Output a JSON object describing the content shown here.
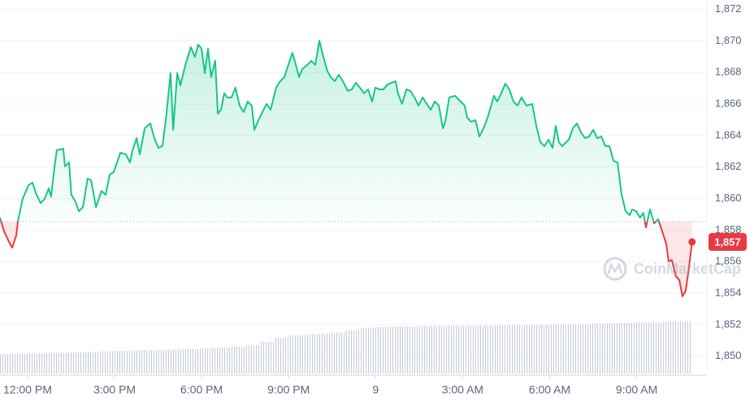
{
  "chart_data": {
    "type": "area",
    "x": [
      11.05,
      11.19,
      11.39,
      11.47,
      11.61,
      11.67,
      11.83,
      12.03,
      12.17,
      12.31,
      12.45,
      12.59,
      12.73,
      12.81,
      12.95,
      13.01,
      13.23,
      13.29,
      13.43,
      13.51,
      13.65,
      13.77,
      13.91,
      14.07,
      14.19,
      14.36,
      14.55,
      14.69,
      14.83,
      14.97,
      15.2,
      15.39,
      15.53,
      15.62,
      15.76,
      15.87,
      16.04,
      16.23,
      16.37,
      16.51,
      16.65,
      16.79,
      16.93,
      17.02,
      17.16,
      17.27,
      17.44,
      17.63,
      17.77,
      17.88,
      18.0,
      18.11,
      18.22,
      18.33,
      18.47,
      18.56,
      18.67,
      18.78,
      18.89,
      19.03,
      19.17,
      19.31,
      19.45,
      19.59,
      19.73,
      19.82,
      19.96,
      20.07,
      20.24,
      20.38,
      20.57,
      20.71,
      20.85,
      20.99,
      21.13,
      21.25,
      21.36,
      21.47,
      21.64,
      21.78,
      21.92,
      22.06,
      22.2,
      22.34,
      22.45,
      22.59,
      22.73,
      22.87,
      23.04,
      23.18,
      23.32,
      23.46,
      23.6,
      23.74,
      23.88,
      23.99,
      24.13,
      24.27,
      24.41,
      24.55,
      24.69,
      24.77,
      24.91,
      25.06,
      25.2,
      25.34,
      25.48,
      25.62,
      25.76,
      25.9,
      26.04,
      26.18,
      26.32,
      26.4,
      26.54,
      26.74,
      26.93,
      27.07,
      27.16,
      27.3,
      27.44,
      27.58,
      27.72,
      27.86,
      28.0,
      28.08,
      28.19,
      28.33,
      28.47,
      28.61,
      28.75,
      28.89,
      29.03,
      29.2,
      29.4,
      29.54,
      29.68,
      29.82,
      29.96,
      30.1,
      30.21,
      30.32,
      30.43,
      30.57,
      30.66,
      30.8,
      30.94,
      31.08,
      31.22,
      31.36,
      31.5,
      31.64,
      31.78,
      31.92,
      32.06,
      32.2,
      32.34,
      32.48,
      32.62,
      32.76,
      32.84,
      32.98,
      33.12,
      33.23,
      33.32,
      33.46,
      33.6,
      33.74,
      33.88,
      34.02,
      34.1,
      34.21,
      34.35,
      34.47,
      34.58,
      34.69,
      34.8,
      34.91
    ],
    "values": [
      1858.79,
      1857.92,
      1857.14,
      1856.89,
      1857.66,
      1858.59,
      1859.98,
      1860.85,
      1861.01,
      1860.24,
      1859.72,
      1859.98,
      1860.65,
      1860.13,
      1862.3,
      1863.07,
      1863.17,
      1862.04,
      1862.3,
      1860.24,
      1859.82,
      1859.2,
      1859.46,
      1861.27,
      1861.16,
      1859.46,
      1860.49,
      1860.24,
      1861.52,
      1861.68,
      1862.91,
      1862.81,
      1862.3,
      1863.07,
      1863.84,
      1862.81,
      1864.46,
      1864.77,
      1863.84,
      1863.22,
      1863.33,
      1865.39,
      1867.96,
      1864.36,
      1867.96,
      1867.19,
      1868.48,
      1869.61,
      1868.99,
      1869.77,
      1869.51,
      1867.96,
      1869.51,
      1867.71,
      1868.74,
      1865.39,
      1865.64,
      1866.68,
      1866.42,
      1866.42,
      1867.04,
      1865.9,
      1865.49,
      1866.16,
      1865.9,
      1864.36,
      1864.98,
      1865.39,
      1866.01,
      1865.64,
      1867.04,
      1867.45,
      1867.71,
      1868.48,
      1869.25,
      1868.48,
      1867.71,
      1868.22,
      1868.48,
      1868.74,
      1868.48,
      1870.02,
      1868.99,
      1868.07,
      1867.71,
      1867.45,
      1867.86,
      1867.45,
      1866.83,
      1866.93,
      1867.35,
      1867.04,
      1866.68,
      1866.93,
      1866.16,
      1867.04,
      1866.93,
      1866.93,
      1867.24,
      1867.35,
      1867.45,
      1866.68,
      1866.01,
      1866.93,
      1866.83,
      1866.42,
      1865.9,
      1866.42,
      1866.01,
      1865.64,
      1866.16,
      1865.9,
      1864.46,
      1864.87,
      1866.42,
      1866.52,
      1866.16,
      1865.9,
      1865.13,
      1864.87,
      1864.98,
      1863.94,
      1864.46,
      1865.13,
      1866.01,
      1866.52,
      1866.16,
      1866.68,
      1867.29,
      1866.93,
      1866.16,
      1865.9,
      1866.42,
      1865.9,
      1866.01,
      1864.61,
      1863.58,
      1863.33,
      1863.74,
      1863.22,
      1864.61,
      1863.58,
      1863.33,
      1863.58,
      1863.74,
      1864.46,
      1864.77,
      1864.2,
      1863.84,
      1863.94,
      1864.36,
      1863.84,
      1863.94,
      1863.33,
      1863.33,
      1862.4,
      1862.3,
      1860.24,
      1859.2,
      1858.95,
      1859.31,
      1859.2,
      1858.79,
      1859.1,
      1858.17,
      1859.31,
      1858.43,
      1858.69,
      1857.92,
      1857.14,
      1856.01,
      1856.11,
      1855.08,
      1854.83,
      1853.8,
      1854.16,
      1855.6,
      1857.25
    ],
    "baseline": 1858.54,
    "up_color": "#16c784",
    "down_color": "#ea3943",
    "price_label": "1,857",
    "watermark": "CoinMarketCap",
    "xlim": [
      11.05,
      35.42
    ],
    "ylim": [
      1848.9,
      1872.6
    ],
    "xticks": [
      {
        "value": 12,
        "label": "12:00 PM"
      },
      {
        "value": 15,
        "label": "3:00 PM"
      },
      {
        "value": 18,
        "label": "6:00 PM"
      },
      {
        "value": 21,
        "label": "9:00 PM"
      },
      {
        "value": 24,
        "label": "9"
      },
      {
        "value": 27,
        "label": "3:00 AM"
      },
      {
        "value": 30,
        "label": "6:00 AM"
      },
      {
        "value": 33,
        "label": "9:00 AM"
      }
    ],
    "yticks": [
      {
        "value": 1850,
        "label": "1,850"
      },
      {
        "value": 1852,
        "label": "1,852"
      },
      {
        "value": 1854,
        "label": "1,854"
      },
      {
        "value": 1856,
        "label": "1,856"
      },
      {
        "value": 1858,
        "label": "1,858"
      },
      {
        "value": 1860,
        "label": "1,860"
      },
      {
        "value": 1862,
        "label": "1,862"
      },
      {
        "value": 1864,
        "label": "1,864"
      },
      {
        "value": 1866,
        "label": "1,866"
      },
      {
        "value": 1868,
        "label": "1,868"
      },
      {
        "value": 1870,
        "label": "1,870"
      },
      {
        "value": 1872,
        "label": "1,872"
      }
    ],
    "grid": true,
    "volume": {
      "color": "#d3d9e3",
      "y2lim": [
        0,
        100
      ],
      "values": [
        5.2,
        5.3,
        5.4,
        5.5,
        5.6,
        5.7,
        5.8,
        6.0,
        6.1,
        6.2,
        6.3,
        6.4,
        6.5,
        6.6,
        6.8,
        7.0,
        7.2,
        7.6,
        8.5,
        9.6,
        10.2,
        10.5,
        10.7,
        11.0,
        11.6,
        12.2,
        12.4,
        12.6,
        12.6,
        12.7,
        12.7,
        12.8,
        12.8,
        12.9,
        12.9,
        13.0,
        13.0,
        13.0,
        13.1,
        13.2,
        13.3,
        13.4,
        13.5,
        13.6,
        13.7,
        13.7,
        14.0,
        14.0
      ]
    }
  }
}
